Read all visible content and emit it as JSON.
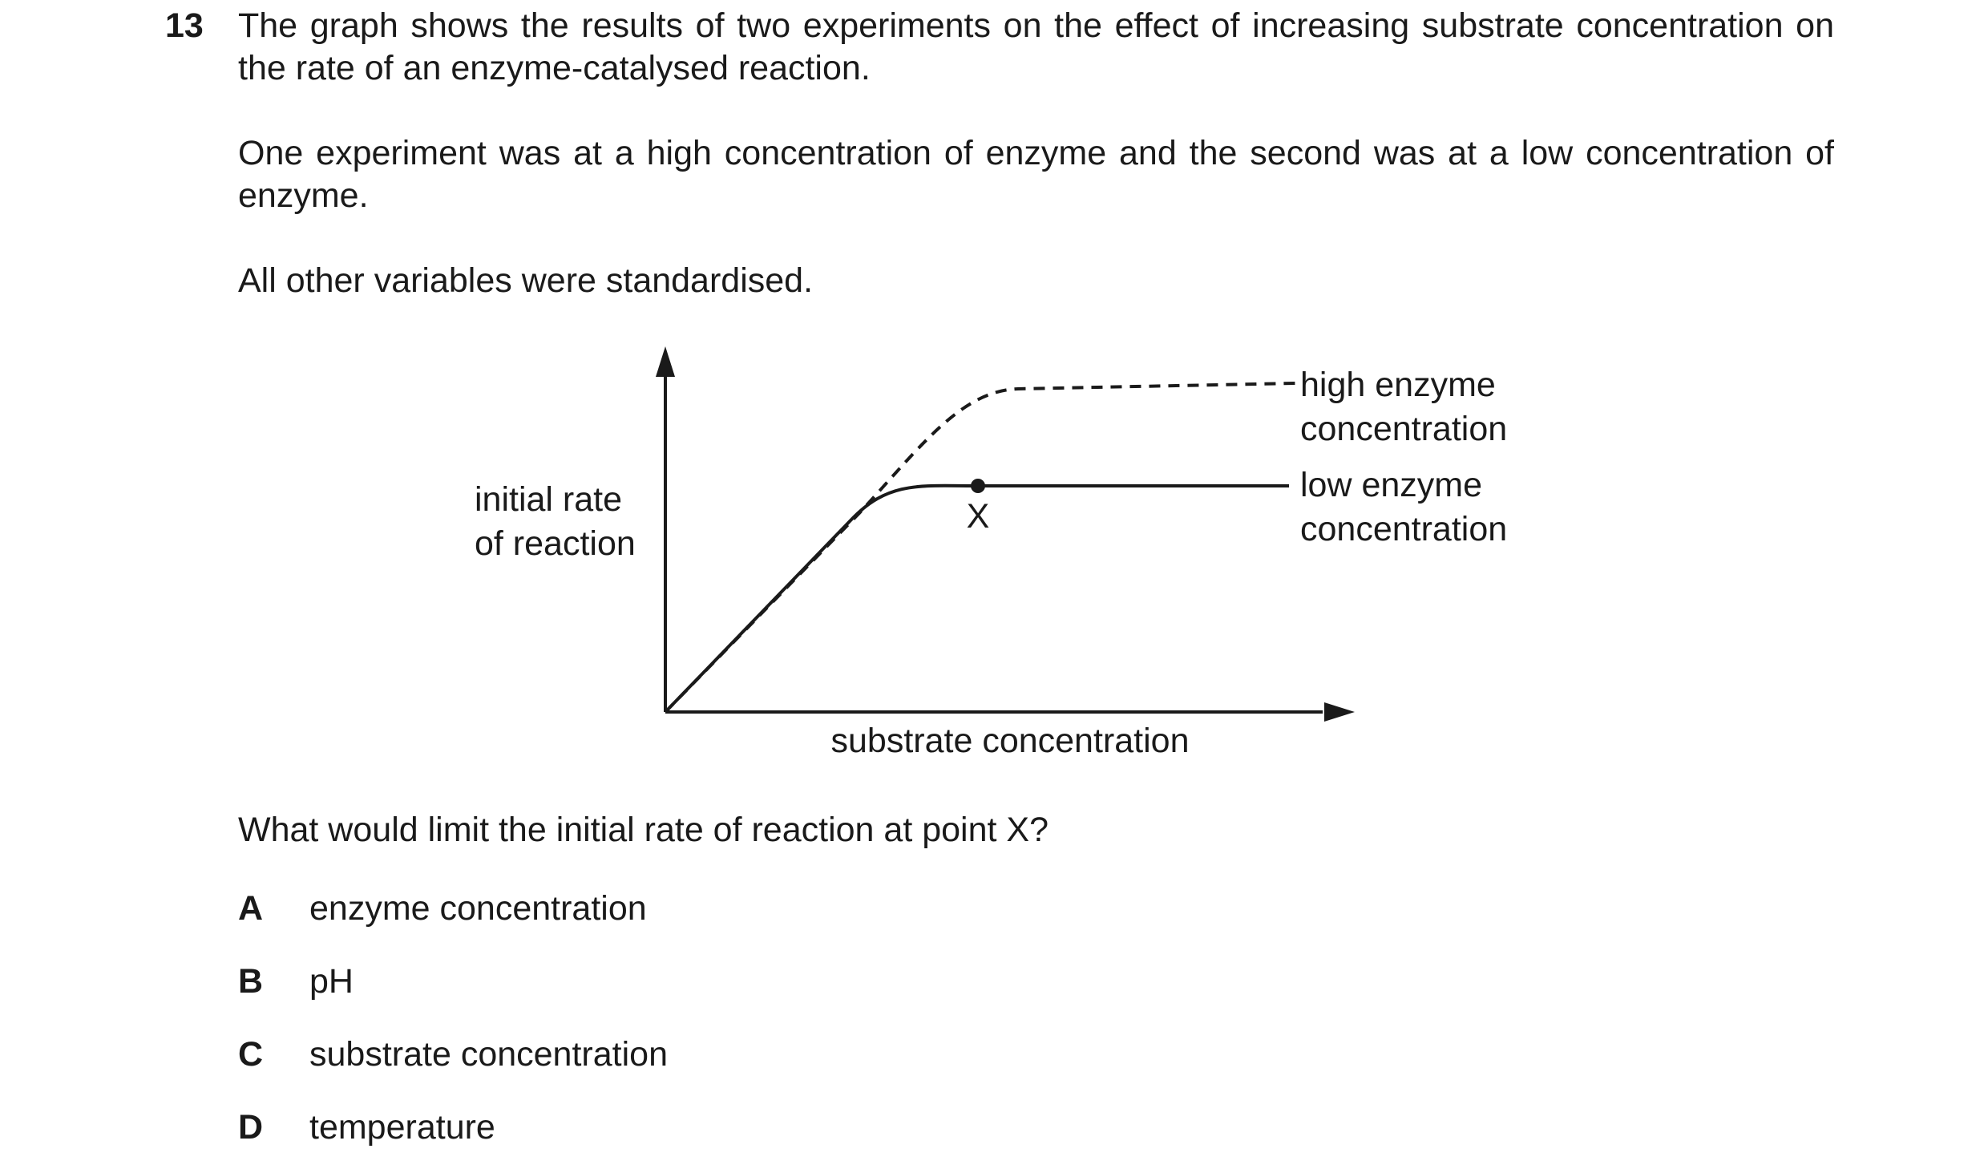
{
  "question": {
    "number": "13",
    "paragraphs": [
      "The graph shows the results of two experiments on the effect of increasing substrate concentration on the rate of an enzyme-catalysed reaction.",
      "One experiment was at a high concentration of enzyme and the second was at a low concentration of enzyme.",
      "All other variables were standardised."
    ],
    "prompt": "What would limit the initial rate of reaction at point X?",
    "options": [
      {
        "letter": "A",
        "text": "enzyme concentration"
      },
      {
        "letter": "B",
        "text": "pH"
      },
      {
        "letter": "C",
        "text": "substrate concentration"
      },
      {
        "letter": "D",
        "text": "temperature"
      }
    ]
  },
  "graph": {
    "y_axis_label_lines": [
      "initial rate",
      "of reaction"
    ],
    "x_axis_label": "substrate concentration",
    "high_curve_label_lines": [
      "high enzyme",
      "concentration"
    ],
    "low_curve_label_lines": [
      "low enzyme",
      "concentration"
    ],
    "point_label": "X",
    "high_curve_style": "dashed",
    "low_curve_style": "solid"
  }
}
